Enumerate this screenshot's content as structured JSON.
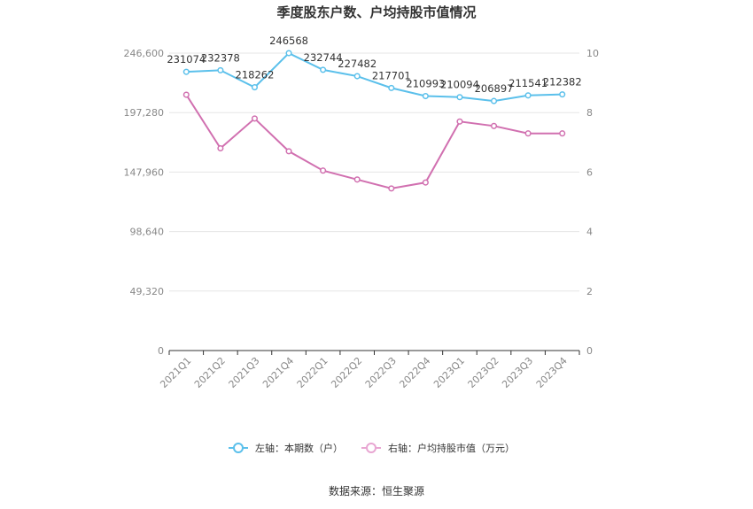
{
  "chart_data": {
    "type": "line",
    "title": "季度股东户数、户均持股市值情况",
    "categories": [
      "2021Q1",
      "2021Q2",
      "2021Q3",
      "2021Q4",
      "2022Q1",
      "2022Q2",
      "2022Q3",
      "2022Q4",
      "2023Q1",
      "2023Q2",
      "2023Q3",
      "2023Q4"
    ],
    "left_axis": {
      "min": 0,
      "max": 246600,
      "ticks": [
        "0",
        "49,320",
        "98,640",
        "147,960",
        "197,280",
        "246,600"
      ]
    },
    "right_axis": {
      "min": 0,
      "max": 10,
      "ticks": [
        "0",
        "2",
        "4",
        "6",
        "8",
        "10"
      ]
    },
    "series": [
      {
        "name": "左轴：本期数（户）",
        "axis": "left",
        "color": "#5bc0eb",
        "values": [
          231074,
          232378,
          218262,
          246568,
          232744,
          227482,
          217701,
          210993,
          210094,
          206897,
          211541,
          212382
        ],
        "labels": [
          "231074",
          "232378",
          "218262",
          "246568",
          "232744",
          "227482",
          "217701",
          "210993",
          "210094",
          "206897",
          "211541",
          "212382"
        ]
      },
      {
        "name": "右轴：户均持股市值（万元）",
        "axis": "right",
        "color": "#d170b0",
        "values": [
          8.6,
          6.8,
          7.8,
          6.7,
          6.05,
          5.75,
          5.45,
          5.65,
          7.7,
          7.55,
          7.3,
          7.3
        ]
      }
    ],
    "grid": true,
    "legend_position": "bottom"
  },
  "source": "数据来源：恒生聚源"
}
